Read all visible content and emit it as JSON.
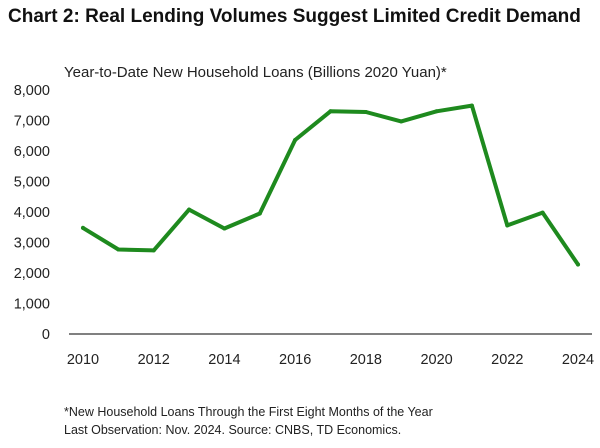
{
  "title": "Chart 2: Real Lending Volumes Suggest Limited Credit Demand",
  "footnote": "*New Household Loans Through the First Eight Months of the Year",
  "source": "Last Observation: Nov. 2024. Source: CNBS, TD Economics.",
  "colors": {
    "line": "#1e8a1e",
    "axis": "#000000",
    "text": "#222222"
  },
  "chart_data": {
    "type": "line",
    "title": "Year-to-Date New Household Loans (Billions 2020 Yuan)*",
    "xlabel": "",
    "ylabel": "",
    "x": [
      2010,
      2011,
      2012,
      2013,
      2014,
      2015,
      2016,
      2017,
      2018,
      2019,
      2020,
      2021,
      2022,
      2023,
      2024
    ],
    "series": [
      {
        "values": [
          3480,
          2770,
          2740,
          4080,
          3460,
          3950,
          6360,
          7300,
          7280,
          6970,
          7300,
          7490,
          3560,
          3980,
          2280
        ]
      }
    ],
    "xlim": [
      2010,
      2024
    ],
    "ylim": [
      0,
      8000
    ],
    "x_ticks": [
      "2010",
      "2012",
      "2014",
      "2016",
      "2018",
      "2020",
      "2022",
      "2024"
    ],
    "y_ticks": [
      "0",
      "1,000",
      "2,000",
      "3,000",
      "4,000",
      "5,000",
      "6,000",
      "7,000",
      "8,000"
    ],
    "grid": false,
    "legend": "none"
  }
}
